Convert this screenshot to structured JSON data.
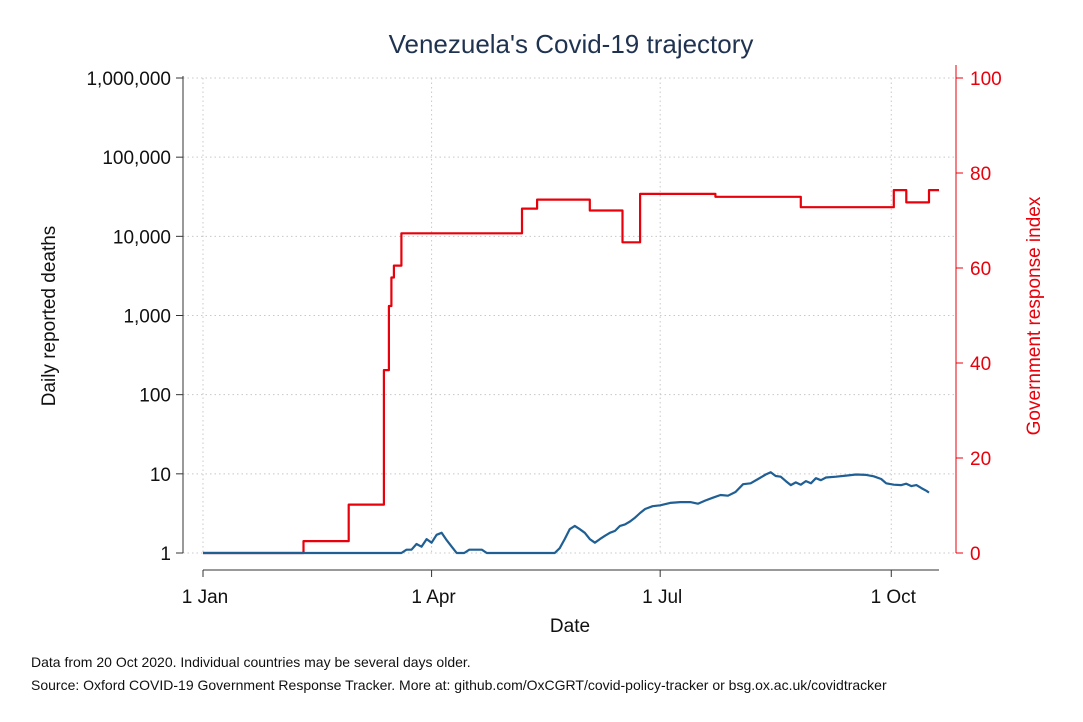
{
  "chart_data": {
    "type": "line",
    "title": "Venezuela's Covid-19 trajectory",
    "xlabel": "Date",
    "ylabel_left": "Daily reported deaths",
    "ylabel_right": "Government response index",
    "x_range": [
      "2020-01-01",
      "2020-10-20"
    ],
    "x_ticks": [
      {
        "date": "2020-01-01",
        "label": "1 Jan"
      },
      {
        "date": "2020-04-01",
        "label": "1 Apr"
      },
      {
        "date": "2020-07-01",
        "label": "1 Jul"
      },
      {
        "date": "2020-10-01",
        "label": "1 Oct"
      }
    ],
    "y_left": {
      "scale": "log",
      "range": [
        1,
        1000000
      ],
      "ticks": [
        {
          "value": 1,
          "label": "1"
        },
        {
          "value": 10,
          "label": "10"
        },
        {
          "value": 100,
          "label": "100"
        },
        {
          "value": 1000,
          "label": "1,000"
        },
        {
          "value": 10000,
          "label": "10,000"
        },
        {
          "value": 100000,
          "label": "100,000"
        },
        {
          "value": 1000000,
          "label": "1,000,000"
        }
      ]
    },
    "y_right": {
      "scale": "linear",
      "range": [
        0,
        100
      ],
      "ticks": [
        {
          "value": 0,
          "label": "0"
        },
        {
          "value": 20,
          "label": "20"
        },
        {
          "value": 40,
          "label": "40"
        },
        {
          "value": 60,
          "label": "60"
        },
        {
          "value": 80,
          "label": "80"
        },
        {
          "value": 100,
          "label": "100"
        }
      ]
    },
    "grid": true,
    "legend": "none",
    "series": [
      {
        "axis": "right",
        "color": "#e8000b",
        "step": true,
        "points": [
          [
            "2020-01-01",
            0
          ],
          [
            "2020-02-10",
            2.5
          ],
          [
            "2020-02-28",
            10.2
          ],
          [
            "2020-03-13",
            38.5
          ],
          [
            "2020-03-15",
            52
          ],
          [
            "2020-03-16",
            58
          ],
          [
            "2020-03-17",
            60.5
          ],
          [
            "2020-03-20",
            67.3
          ],
          [
            "2020-05-07",
            72.5
          ],
          [
            "2020-05-13",
            74.4
          ],
          [
            "2020-06-03",
            72.1
          ],
          [
            "2020-06-16",
            65.4
          ],
          [
            "2020-06-23",
            75.6
          ],
          [
            "2020-07-23",
            75
          ],
          [
            "2020-08-26",
            72.8
          ],
          [
            "2020-10-02",
            76.4
          ],
          [
            "2020-10-07",
            73.8
          ],
          [
            "2020-10-16",
            76.4
          ],
          [
            "2020-10-20",
            76.4
          ]
        ]
      },
      {
        "axis": "left",
        "color": "#1f5f93",
        "points": [
          [
            "2020-01-01",
            1
          ],
          [
            "2020-03-20",
            1
          ],
          [
            "2020-03-22",
            1.1
          ],
          [
            "2020-03-24",
            1.1
          ],
          [
            "2020-03-26",
            1.3
          ],
          [
            "2020-03-28",
            1.2
          ],
          [
            "2020-03-30",
            1.5
          ],
          [
            "2020-04-01",
            1.35
          ],
          [
            "2020-04-03",
            1.7
          ],
          [
            "2020-04-05",
            1.8
          ],
          [
            "2020-04-07",
            1.45
          ],
          [
            "2020-04-09",
            1.2
          ],
          [
            "2020-04-11",
            1
          ],
          [
            "2020-04-14",
            1
          ],
          [
            "2020-04-16",
            1.1
          ],
          [
            "2020-04-21",
            1.1
          ],
          [
            "2020-04-23",
            1
          ],
          [
            "2020-05-20",
            1
          ],
          [
            "2020-05-22",
            1.15
          ],
          [
            "2020-05-24",
            1.5
          ],
          [
            "2020-05-26",
            2
          ],
          [
            "2020-05-28",
            2.2
          ],
          [
            "2020-05-30",
            2
          ],
          [
            "2020-06-01",
            1.8
          ],
          [
            "2020-06-03",
            1.5
          ],
          [
            "2020-06-05",
            1.35
          ],
          [
            "2020-06-07",
            1.5
          ],
          [
            "2020-06-09",
            1.65
          ],
          [
            "2020-06-11",
            1.8
          ],
          [
            "2020-06-13",
            1.9
          ],
          [
            "2020-06-15",
            2.2
          ],
          [
            "2020-06-17",
            2.3
          ],
          [
            "2020-06-19",
            2.5
          ],
          [
            "2020-06-21",
            2.8
          ],
          [
            "2020-06-23",
            3.2
          ],
          [
            "2020-06-25",
            3.6
          ],
          [
            "2020-06-28",
            3.9
          ],
          [
            "2020-07-01",
            4
          ],
          [
            "2020-07-05",
            4.3
          ],
          [
            "2020-07-09",
            4.4
          ],
          [
            "2020-07-13",
            4.4
          ],
          [
            "2020-07-16",
            4.2
          ],
          [
            "2020-07-19",
            4.6
          ],
          [
            "2020-07-22",
            5
          ],
          [
            "2020-07-25",
            5.4
          ],
          [
            "2020-07-28",
            5.3
          ],
          [
            "2020-07-31",
            5.9
          ],
          [
            "2020-08-03",
            7.4
          ],
          [
            "2020-08-06",
            7.6
          ],
          [
            "2020-08-09",
            8.6
          ],
          [
            "2020-08-12",
            9.8
          ],
          [
            "2020-08-14",
            10.5
          ],
          [
            "2020-08-16",
            9.4
          ],
          [
            "2020-08-18",
            9.2
          ],
          [
            "2020-08-20",
            8.1
          ],
          [
            "2020-08-22",
            7.2
          ],
          [
            "2020-08-24",
            7.8
          ],
          [
            "2020-08-26",
            7.3
          ],
          [
            "2020-08-28",
            8.1
          ],
          [
            "2020-08-30",
            7.6
          ],
          [
            "2020-09-01",
            8.8
          ],
          [
            "2020-09-03",
            8.3
          ],
          [
            "2020-09-05",
            9
          ],
          [
            "2020-09-09",
            9.2
          ],
          [
            "2020-09-13",
            9.5
          ],
          [
            "2020-09-17",
            9.8
          ],
          [
            "2020-09-21",
            9.7
          ],
          [
            "2020-09-24",
            9.3
          ],
          [
            "2020-09-27",
            8.6
          ],
          [
            "2020-09-29",
            7.6
          ],
          [
            "2020-10-02",
            7.3
          ],
          [
            "2020-10-05",
            7.2
          ],
          [
            "2020-10-07",
            7.5
          ],
          [
            "2020-10-09",
            7
          ],
          [
            "2020-10-11",
            7.2
          ],
          [
            "2020-10-13",
            6.6
          ],
          [
            "2020-10-15",
            6.1
          ],
          [
            "2020-10-16",
            5.8
          ]
        ]
      }
    ]
  },
  "notes": {
    "line1": "Data from 20 Oct 2020. Individual countries may be several days older.",
    "line2": "Source: Oxford COVID-19 Government Response Tracker. More at: github.com/OxCGRT/covid-policy-tracker or bsg.ox.ac.uk/covidtracker"
  }
}
